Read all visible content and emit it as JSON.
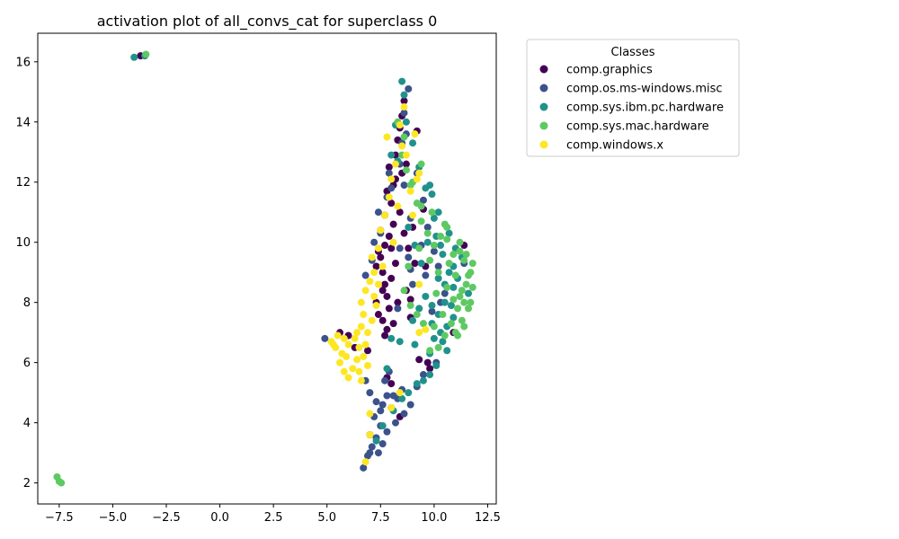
{
  "chart_data": {
    "type": "scatter",
    "title": "activation plot of all_convs_cat for superclass 0",
    "xlabel": "",
    "ylabel": "",
    "xlim": [
      -8.5,
      12.9
    ],
    "ylim": [
      1.3,
      16.95
    ],
    "xticks": [
      -7.5,
      -5.0,
      -2.5,
      0.0,
      2.5,
      5.0,
      7.5,
      10.0,
      12.5
    ],
    "xtick_labels": [
      "−7.5",
      "−5.0",
      "−2.5",
      "0.0",
      "2.5",
      "5.0",
      "7.5",
      "10.0",
      "12.5"
    ],
    "yticks": [
      2,
      4,
      6,
      8,
      10,
      12,
      14,
      16
    ],
    "ytick_labels": [
      "2",
      "4",
      "6",
      "8",
      "10",
      "12",
      "14",
      "16"
    ],
    "grid": false,
    "legend": {
      "title": "Classes",
      "placement": "outside-right"
    },
    "series": [
      {
        "name": "comp.graphics",
        "color": "#440154",
        "points": [
          [
            -3.7,
            16.2
          ],
          [
            7.5,
            9.5
          ],
          [
            7.6,
            9.0
          ],
          [
            7.7,
            8.6
          ],
          [
            7.8,
            8.2
          ],
          [
            7.9,
            7.8
          ],
          [
            7.6,
            7.4
          ],
          [
            7.8,
            7.1
          ],
          [
            8.0,
            9.8
          ],
          [
            7.4,
            9.7
          ],
          [
            7.3,
            9.2
          ],
          [
            7.9,
            10.2
          ],
          [
            8.1,
            10.6
          ],
          [
            7.7,
            10.9
          ],
          [
            8.0,
            11.3
          ],
          [
            7.8,
            11.7
          ],
          [
            8.2,
            12.1
          ],
          [
            7.9,
            12.5
          ],
          [
            8.2,
            12.9
          ],
          [
            8.3,
            13.4
          ],
          [
            8.4,
            13.8
          ],
          [
            8.5,
            14.2
          ],
          [
            8.6,
            14.7
          ],
          [
            8.4,
            11.0
          ],
          [
            8.6,
            10.3
          ],
          [
            8.2,
            9.3
          ],
          [
            8.0,
            8.8
          ],
          [
            7.6,
            8.4
          ],
          [
            8.3,
            8.0
          ],
          [
            7.7,
            6.9
          ],
          [
            6.0,
            6.9
          ],
          [
            5.6,
            7.0
          ],
          [
            6.3,
            6.5
          ],
          [
            8.8,
            9.8
          ],
          [
            9.1,
            9.3
          ],
          [
            9.0,
            10.5
          ],
          [
            8.7,
            12.6
          ],
          [
            9.2,
            13.7
          ],
          [
            9.7,
            6.0
          ],
          [
            9.3,
            6.1
          ],
          [
            9.8,
            5.8
          ],
          [
            11.4,
            9.9
          ],
          [
            10.9,
            7.0
          ],
          [
            8.9,
            7.5
          ],
          [
            7.8,
            5.5
          ],
          [
            8.0,
            5.3
          ],
          [
            7.7,
            9.9
          ],
          [
            7.5,
            10.4
          ],
          [
            8.1,
            7.3
          ],
          [
            7.4,
            7.6
          ],
          [
            8.5,
            12.3
          ],
          [
            8.7,
            8.4
          ],
          [
            8.9,
            8.1
          ],
          [
            6.9,
            6.4
          ],
          [
            9.6,
            9.2
          ],
          [
            9.5,
            11.1
          ],
          [
            7.0,
            3.6
          ],
          [
            8.4,
            4.2
          ],
          [
            7.3,
            8.0
          ],
          [
            8.1,
            11.9
          ]
        ]
      },
      {
        "name": "comp.os.ms-windows.misc",
        "color": "#3b528b",
        "points": [
          [
            6.7,
            2.5
          ],
          [
            6.9,
            2.9
          ],
          [
            7.1,
            3.2
          ],
          [
            7.3,
            3.5
          ],
          [
            7.5,
            3.9
          ],
          [
            7.2,
            4.2
          ],
          [
            7.6,
            4.6
          ],
          [
            7.8,
            4.9
          ],
          [
            8.0,
            4.5
          ],
          [
            8.3,
            4.8
          ],
          [
            8.6,
            4.3
          ],
          [
            8.9,
            4.6
          ],
          [
            7.4,
            3.0
          ],
          [
            7.0,
            5.0
          ],
          [
            4.9,
            6.8
          ],
          [
            6.8,
            8.9
          ],
          [
            7.1,
            9.4
          ],
          [
            7.5,
            10.3
          ],
          [
            7.4,
            11.0
          ],
          [
            7.8,
            11.5
          ],
          [
            8.0,
            11.8
          ],
          [
            8.4,
            12.6
          ],
          [
            8.5,
            13.3
          ],
          [
            8.7,
            13.6
          ],
          [
            8.8,
            15.1
          ],
          [
            8.6,
            14.3
          ],
          [
            9.2,
            12.3
          ],
          [
            9.5,
            11.4
          ],
          [
            9.7,
            10.5
          ],
          [
            10.0,
            9.7
          ],
          [
            10.2,
            9.2
          ],
          [
            10.5,
            8.3
          ],
          [
            9.6,
            8.9
          ],
          [
            9.0,
            8.6
          ],
          [
            8.8,
            9.5
          ],
          [
            7.9,
            5.7
          ],
          [
            7.7,
            5.4
          ],
          [
            9.2,
            5.2
          ],
          [
            9.5,
            5.6
          ],
          [
            8.2,
            4.0
          ],
          [
            7.6,
            3.3
          ],
          [
            8.9,
            10.8
          ],
          [
            11.4,
            9.3
          ],
          [
            10.1,
            6.0
          ],
          [
            8.3,
            7.8
          ],
          [
            7.2,
            10.0
          ],
          [
            6.8,
            5.4
          ],
          [
            7.5,
            4.4
          ],
          [
            8.1,
            4.9
          ],
          [
            9.9,
            7.7
          ],
          [
            10.3,
            8.0
          ],
          [
            8.6,
            11.9
          ],
          [
            7.9,
            12.3
          ],
          [
            8.4,
            9.8
          ],
          [
            8.9,
            9.1
          ],
          [
            9.4,
            9.9
          ],
          [
            7.3,
            4.7
          ],
          [
            7.0,
            3.0
          ],
          [
            7.8,
            3.7
          ],
          [
            8.5,
            5.1
          ]
        ]
      },
      {
        "name": "comp.sys.ibm.pc.hardware",
        "color": "#21918c",
        "points": [
          [
            -4.0,
            16.15
          ],
          [
            -3.5,
            16.2
          ],
          [
            8.5,
            15.35
          ],
          [
            8.6,
            14.9
          ],
          [
            8.7,
            14.0
          ],
          [
            9.0,
            13.3
          ],
          [
            9.3,
            12.5
          ],
          [
            9.6,
            11.8
          ],
          [
            9.9,
            11.6
          ],
          [
            10.2,
            11.0
          ],
          [
            10.1,
            10.2
          ],
          [
            10.4,
            9.6
          ],
          [
            10.7,
            9.0
          ],
          [
            10.9,
            8.5
          ],
          [
            10.5,
            8.0
          ],
          [
            10.2,
            7.6
          ],
          [
            9.9,
            7.3
          ],
          [
            10.3,
            7.0
          ],
          [
            10.6,
            7.2
          ],
          [
            10.0,
            6.8
          ],
          [
            9.8,
            6.3
          ],
          [
            10.1,
            5.9
          ],
          [
            9.8,
            5.6
          ],
          [
            9.5,
            5.4
          ],
          [
            9.2,
            5.3
          ],
          [
            8.8,
            5.0
          ],
          [
            8.5,
            4.8
          ],
          [
            8.1,
            4.4
          ],
          [
            7.6,
            3.9
          ],
          [
            7.3,
            3.4
          ],
          [
            7.8,
            5.8
          ],
          [
            8.0,
            6.8
          ],
          [
            8.4,
            6.7
          ],
          [
            9.1,
            6.6
          ],
          [
            10.4,
            6.7
          ],
          [
            11.1,
            8.8
          ],
          [
            11.3,
            9.5
          ],
          [
            11.0,
            9.8
          ],
          [
            10.7,
            10.3
          ],
          [
            9.7,
            10.0
          ],
          [
            9.1,
            9.9
          ],
          [
            8.8,
            10.5
          ],
          [
            8.3,
            12.7
          ],
          [
            8.0,
            12.9
          ],
          [
            10.8,
            7.9
          ],
          [
            10.5,
            8.6
          ],
          [
            9.6,
            8.2
          ],
          [
            9.3,
            7.8
          ],
          [
            9.0,
            7.4
          ],
          [
            10.9,
            7.5
          ],
          [
            11.6,
            8.3
          ],
          [
            10.0,
            10.8
          ],
          [
            9.4,
            9.3
          ],
          [
            8.2,
            13.9
          ],
          [
            10.6,
            6.4
          ],
          [
            9.9,
            7.9
          ],
          [
            10.3,
            9.9
          ],
          [
            10.9,
            9.2
          ],
          [
            9.8,
            11.9
          ],
          [
            10.2,
            8.8
          ]
        ]
      },
      {
        "name": "comp.sys.mac.hardware",
        "color": "#5ec962",
        "points": [
          [
            -7.6,
            2.2
          ],
          [
            -7.4,
            2.0
          ],
          [
            -7.5,
            2.05
          ],
          [
            -3.45,
            16.25
          ],
          [
            11.0,
            7.0
          ],
          [
            11.3,
            7.4
          ],
          [
            11.6,
            7.8
          ],
          [
            11.2,
            8.2
          ],
          [
            11.5,
            8.6
          ],
          [
            11.7,
            9.0
          ],
          [
            11.4,
            9.4
          ],
          [
            11.2,
            9.7
          ],
          [
            10.9,
            9.6
          ],
          [
            10.6,
            10.1
          ],
          [
            10.5,
            10.6
          ],
          [
            10.3,
            10.2
          ],
          [
            10.0,
            9.9
          ],
          [
            9.7,
            10.3
          ],
          [
            9.4,
            10.7
          ],
          [
            9.2,
            11.3
          ],
          [
            8.9,
            11.9
          ],
          [
            8.7,
            12.4
          ],
          [
            8.5,
            12.9
          ],
          [
            9.0,
            12.0
          ],
          [
            9.4,
            11.2
          ],
          [
            9.8,
            9.4
          ],
          [
            10.2,
            9.0
          ],
          [
            10.6,
            8.5
          ],
          [
            10.9,
            8.1
          ],
          [
            11.4,
            7.2
          ],
          [
            11.7,
            8.0
          ],
          [
            11.8,
            9.3
          ],
          [
            11.1,
            7.8
          ],
          [
            10.8,
            7.3
          ],
          [
            10.5,
            6.9
          ],
          [
            10.2,
            6.5
          ],
          [
            9.8,
            6.4
          ],
          [
            9.5,
            7.3
          ],
          [
            9.2,
            7.6
          ],
          [
            8.9,
            7.9
          ],
          [
            8.6,
            8.4
          ],
          [
            9.3,
            9.8
          ],
          [
            10.1,
            8.3
          ],
          [
            10.4,
            7.6
          ],
          [
            11.0,
            8.9
          ],
          [
            11.3,
            8.4
          ],
          [
            10.7,
            9.3
          ],
          [
            11.5,
            9.6
          ],
          [
            11.2,
            10.0
          ],
          [
            8.6,
            13.5
          ],
          [
            8.3,
            14.0
          ],
          [
            9.4,
            12.6
          ],
          [
            9.9,
            11.0
          ],
          [
            8.8,
            9.2
          ],
          [
            11.6,
            8.9
          ],
          [
            11.8,
            8.5
          ],
          [
            10.0,
            7.2
          ],
          [
            10.6,
            10.5
          ],
          [
            11.1,
            6.9
          ],
          [
            11.4,
            8.0
          ]
        ]
      },
      {
        "name": "comp.windows.x",
        "color": "#fde725",
        "points": [
          [
            5.2,
            6.7
          ],
          [
            5.4,
            6.5
          ],
          [
            5.7,
            6.3
          ],
          [
            5.6,
            6.0
          ],
          [
            5.8,
            5.7
          ],
          [
            6.0,
            5.5
          ],
          [
            6.2,
            5.8
          ],
          [
            6.4,
            6.1
          ],
          [
            6.5,
            6.5
          ],
          [
            6.3,
            6.8
          ],
          [
            6.0,
            6.6
          ],
          [
            5.8,
            6.8
          ],
          [
            5.5,
            6.9
          ],
          [
            6.6,
            7.2
          ],
          [
            6.7,
            7.6
          ],
          [
            6.6,
            8.0
          ],
          [
            6.8,
            8.4
          ],
          [
            7.0,
            8.7
          ],
          [
            7.2,
            8.2
          ],
          [
            7.4,
            8.6
          ],
          [
            7.3,
            7.9
          ],
          [
            7.1,
            7.4
          ],
          [
            6.9,
            7.0
          ],
          [
            6.8,
            6.6
          ],
          [
            6.7,
            6.2
          ],
          [
            6.5,
            5.7
          ],
          [
            6.6,
            5.4
          ],
          [
            7.2,
            9.0
          ],
          [
            7.4,
            9.8
          ],
          [
            7.5,
            10.4
          ],
          [
            7.7,
            10.9
          ],
          [
            7.9,
            11.5
          ],
          [
            8.0,
            12.1
          ],
          [
            8.2,
            12.6
          ],
          [
            7.8,
            13.5
          ],
          [
            8.4,
            13.9
          ],
          [
            8.6,
            14.5
          ],
          [
            9.3,
            12.3
          ],
          [
            9.2,
            12.1
          ],
          [
            8.3,
            11.2
          ],
          [
            8.1,
            10.0
          ],
          [
            7.6,
            9.2
          ],
          [
            8.9,
            11.7
          ],
          [
            9.0,
            10.9
          ],
          [
            9.3,
            8.6
          ],
          [
            9.6,
            7.1
          ],
          [
            9.3,
            7.0
          ],
          [
            7.0,
            4.3
          ],
          [
            7.0,
            3.6
          ],
          [
            6.8,
            2.7
          ],
          [
            8.0,
            4.5
          ],
          [
            8.4,
            5.0
          ],
          [
            6.9,
            5.9
          ],
          [
            6.4,
            7.0
          ],
          [
            5.9,
            6.2
          ],
          [
            5.3,
            6.6
          ],
          [
            7.1,
            9.5
          ],
          [
            8.7,
            12.9
          ],
          [
            8.5,
            13.2
          ],
          [
            9.1,
            13.6
          ]
        ]
      }
    ]
  }
}
